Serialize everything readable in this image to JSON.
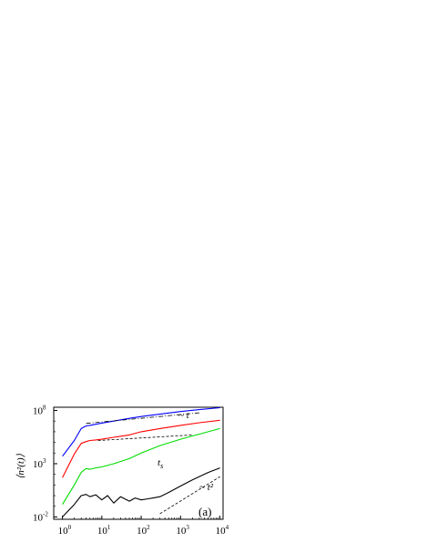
{
  "chart_data": {
    "type": "line",
    "title": "",
    "xlabel": "",
    "ylabel": "⟨n²(t)⟩",
    "x_scale": "log",
    "y_scale": "log",
    "xlim": [
      0.6,
      12000
    ],
    "ylim": [
      0.006,
      200000000
    ],
    "x_ticks": [
      {
        "value": 1,
        "base": "10",
        "exp": "0"
      },
      {
        "value": 10,
        "base": "10",
        "exp": "1"
      },
      {
        "value": 100,
        "base": "10",
        "exp": "2"
      },
      {
        "value": 1000,
        "base": "10",
        "exp": "3"
      },
      {
        "value": 10000,
        "base": "10",
        "exp": "4"
      }
    ],
    "y_ticks": [
      {
        "value": 0.01,
        "base": "10",
        "exp": "-2"
      },
      {
        "value": 1000,
        "base": "10",
        "exp": "3"
      },
      {
        "value": 100000000,
        "base": "10",
        "exp": "8"
      }
    ],
    "series": [
      {
        "color": "#0000ff",
        "x": [
          1,
          2,
          3,
          4,
          5,
          7,
          10,
          20,
          50,
          100,
          300,
          1000,
          3000,
          10000
        ],
        "y": [
          5000,
          150000,
          2000000,
          3500000,
          4000000,
          5000000,
          6500000,
          10000000,
          18000000,
          27000000,
          45000000,
          80000000,
          120000000,
          180000000
        ]
      },
      {
        "color": "#ff0000",
        "x": [
          1,
          2,
          3,
          4,
          5,
          7,
          10,
          20,
          50,
          100,
          300,
          1000,
          3000,
          10000
        ],
        "y": [
          50,
          8000,
          80000,
          120000,
          150000,
          170000,
          200000,
          300000,
          500000,
          1000000,
          2000000,
          4000000,
          7000000,
          12000000
        ]
      },
      {
        "color": "#00dd00",
        "x": [
          1,
          2,
          3,
          4,
          5,
          7,
          10,
          20,
          50,
          100,
          300,
          1000,
          3000,
          10000
        ],
        "y": [
          0.15,
          10,
          150,
          350,
          300,
          400,
          500,
          1000,
          3000,
          10000,
          50000,
          200000,
          600000,
          2000000
        ]
      },
      {
        "color": "#000000",
        "x": [
          1,
          2,
          3,
          4,
          5,
          7,
          10,
          14,
          20,
          30,
          50,
          70,
          100,
          150,
          200,
          300,
          500,
          1000,
          2000,
          5000,
          10000
        ],
        "y": [
          0.01,
          0.15,
          1,
          1.3,
          0.8,
          1.2,
          0.4,
          1.0,
          0.2,
          0.8,
          0.3,
          0.6,
          0.4,
          0.5,
          0.6,
          0.8,
          2,
          8,
          30,
          150,
          400
        ]
      }
    ],
    "reference_lines": [
      {
        "style": "dash-dot",
        "label": "~ t",
        "x": [
          4,
          3000
        ],
        "y": [
          6000000,
          60000000
        ]
      },
      {
        "style": "dashed",
        "label": "",
        "x": [
          8,
          2000
        ],
        "y": [
          150000,
          500000
        ]
      },
      {
        "style": "dashed",
        "label": "~ t²",
        "x": [
          300,
          10000
        ],
        "y": [
          0.02,
          60
        ]
      }
    ],
    "annotations": [
      {
        "text": "t",
        "sub": "s"
      },
      {
        "text": "(a)"
      }
    ]
  }
}
